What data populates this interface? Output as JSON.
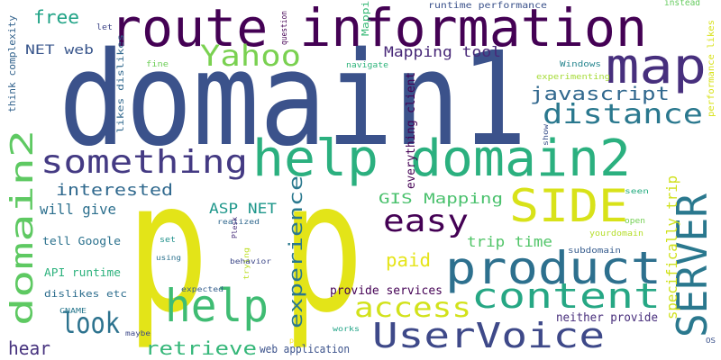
{
  "palette": [
    "#440154",
    "#482475",
    "#414487",
    "#355f8d",
    "#2a788e",
    "#21918c",
    "#22a884",
    "#44bf70",
    "#7ad151",
    "#bddf26",
    "#fde725"
  ],
  "words": [
    {
      "text": "domain1",
      "color": "#3b528b"
    },
    {
      "text": "p",
      "color": "#e3e418"
    },
    {
      "text": "p",
      "color": "#e3e418"
    },
    {
      "text": "route information",
      "color": "#440154"
    },
    {
      "text": "help domain2",
      "color": "#2bb07f"
    },
    {
      "text": "map",
      "color": "#472f7d"
    },
    {
      "text": "product",
      "color": "#2d708e"
    },
    {
      "text": "SERVER",
      "color": "#2a788e"
    },
    {
      "text": "SIDE",
      "color": "#d8e219"
    },
    {
      "text": "help",
      "color": "#3fbc73"
    },
    {
      "text": "something",
      "color": "#443a83"
    },
    {
      "text": "domain2",
      "color": "#5ec962"
    },
    {
      "text": "UserVoice",
      "color": "#3e4989"
    },
    {
      "text": "content",
      "color": "#26a784"
    },
    {
      "text": "distance",
      "color": "#2a788e"
    },
    {
      "text": "easy",
      "color": "#440154"
    },
    {
      "text": "access",
      "color": "#d2e21b"
    },
    {
      "text": "Yahoo",
      "color": "#7ad151"
    },
    {
      "text": "look",
      "color": "#2c728e"
    },
    {
      "text": "javascript",
      "color": "#31688e"
    },
    {
      "text": "experience",
      "color": "#2a788e"
    },
    {
      "text": "interested",
      "color": "#30698e"
    },
    {
      "text": "free",
      "color": "#20a386"
    },
    {
      "text": "retrieve",
      "color": "#35b779"
    },
    {
      "text": "hear",
      "color": "#46327e"
    },
    {
      "text": "paid",
      "color": "#e5e419"
    },
    {
      "text": "GIS Mapping",
      "color": "#4ac16d"
    },
    {
      "text": "Mapping tool",
      "color": "#482878"
    },
    {
      "text": "ASP NET",
      "color": "#1f978b"
    },
    {
      "text": "will give",
      "color": "#2d708e"
    },
    {
      "text": "trip time",
      "color": "#52c569"
    },
    {
      "text": "specifically trip",
      "color": "#d0e11c"
    },
    {
      "text": "everything client",
      "color": "#440154"
    },
    {
      "text": "provide services",
      "color": "#440154"
    },
    {
      "text": "web application",
      "color": "#3b528b"
    },
    {
      "text": "neither provide",
      "color": "#472d7b"
    },
    {
      "text": "tell Google",
      "color": "#2c728e"
    },
    {
      "text": "NET web",
      "color": "#39568c"
    },
    {
      "text": "API runtime",
      "color": "#2db27d"
    },
    {
      "text": "think complexity",
      "color": "#33638d"
    },
    {
      "text": "dislikes etc",
      "color": "#2e6e8e"
    },
    {
      "text": "runtime performance",
      "color": "#3b528b"
    },
    {
      "text": "Mapping",
      "color": "#38b977"
    },
    {
      "text": "experimenting",
      "color": "#a5db36"
    },
    {
      "text": "performance likes",
      "color": "#d8e219"
    },
    {
      "text": "likes dislikes",
      "color": "#31688e"
    },
    {
      "text": "question",
      "color": "#440154"
    },
    {
      "text": "instead",
      "color": "#65cb5e"
    },
    {
      "text": "Windows",
      "color": "#25858e"
    },
    {
      "text": "navigate",
      "color": "#2fb47c"
    },
    {
      "text": "fine",
      "color": "#6ece58"
    },
    {
      "text": "let",
      "color": "#3f4788"
    },
    {
      "text": "show",
      "color": "#3b528b"
    },
    {
      "text": "yourdomain",
      "color": "#b5de2b"
    },
    {
      "text": "seen",
      "color": "#27ad81"
    },
    {
      "text": "open",
      "color": "#75d054"
    },
    {
      "text": "subdomain",
      "color": "#365c8d"
    },
    {
      "text": "realized",
      "color": "#31688e"
    },
    {
      "text": "Plesk",
      "color": "#472c7a"
    },
    {
      "text": "set",
      "color": "#21918c"
    },
    {
      "text": "trying",
      "color": "#bddf26"
    },
    {
      "text": "behavior",
      "color": "#3e4989"
    },
    {
      "text": "using",
      "color": "#2c728e"
    },
    {
      "text": "expected",
      "color": "#355f8d"
    },
    {
      "text": "CNAME",
      "color": "#2a788e"
    },
    {
      "text": "maybe",
      "color": "#3e4989"
    },
    {
      "text": "works",
      "color": "#20a386"
    },
    {
      "text": "p",
      "color": "#fde725"
    },
    {
      "text": "OS",
      "color": "#3b528b"
    }
  ]
}
